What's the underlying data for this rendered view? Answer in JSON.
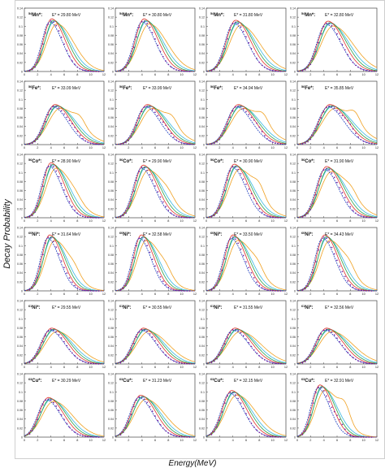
{
  "figure": {
    "ylabel": "Decay Probability",
    "xlabel": "Energy(MeV)"
  },
  "style": {
    "series_colors": {
      "experiment": "#7a1fa2",
      "model_1": "#1f3fbf",
      "model_2": "#e0352b",
      "model_3": "#2aa14a",
      "model_4": "#f0a020",
      "model_5": "#35b8e0"
    }
  },
  "chart_data": [
    {
      "type": "line",
      "nucleus_mass": "54",
      "nucleus_element": "Mn*:",
      "energy_label": "E* = 29.80 MeV",
      "xlim": [
        0,
        12
      ],
      "ylim": [
        0,
        0.14
      ],
      "xticks": [
        "0",
        "2",
        "4",
        "6",
        "8",
        "10",
        "12"
      ],
      "yticks": [
        "0",
        "0.02",
        "0.04",
        "0.06",
        "0.08",
        "0.1",
        "0.12",
        "0.14"
      ],
      "peak_x": 4.3,
      "peak_y": 0.113,
      "width": 1.7,
      "tail": 0.0
    },
    {
      "type": "line",
      "nucleus_mass": "54",
      "nucleus_element": "Mn*:",
      "energy_label": "E* = 30.80 MeV",
      "xlim": [
        0,
        12
      ],
      "ylim": [
        0,
        0.14
      ],
      "xticks": [
        "0",
        "2",
        "4",
        "6",
        "8",
        "10",
        "12"
      ],
      "yticks": [
        "0",
        "0.02",
        "0.04",
        "0.06",
        "0.08",
        "0.1",
        "0.12",
        "0.14"
      ],
      "peak_x": 4.5,
      "peak_y": 0.113,
      "width": 1.8,
      "tail": 0.0
    },
    {
      "type": "line",
      "nucleus_mass": "54",
      "nucleus_element": "Mn*:",
      "energy_label": "E* = 31.80 MeV",
      "xlim": [
        0,
        12
      ],
      "ylim": [
        0,
        0.14
      ],
      "xticks": [
        "0",
        "2",
        "4",
        "6",
        "8",
        "10",
        "12"
      ],
      "yticks": [
        "0",
        "0.02",
        "0.04",
        "0.06",
        "0.08",
        "0.1",
        "0.12",
        "0.14"
      ],
      "peak_x": 4.6,
      "peak_y": 0.11,
      "width": 1.9,
      "tail": 0.0
    },
    {
      "type": "line",
      "nucleus_mass": "54",
      "nucleus_element": "Mn*:",
      "energy_label": "E* = 32.80 MeV",
      "xlim": [
        0,
        12
      ],
      "ylim": [
        0,
        0.14
      ],
      "xticks": [
        "0",
        "2",
        "4",
        "6",
        "8",
        "10",
        "12"
      ],
      "yticks": [
        "0",
        "0.02",
        "0.04",
        "0.06",
        "0.08",
        "0.1",
        "0.12",
        "0.14"
      ],
      "peak_x": 4.8,
      "peak_y": 0.108,
      "width": 2.0,
      "tail": 0.0
    },
    {
      "type": "line",
      "nucleus_mass": "56",
      "nucleus_element": "Fe*:",
      "energy_label": "E* = 33.09 MeV",
      "xlim": [
        0,
        12
      ],
      "ylim": [
        0,
        0.14
      ],
      "xticks": [
        "0",
        "2",
        "4",
        "6",
        "8",
        "10",
        "12"
      ],
      "yticks": [
        "0",
        "0.02",
        "0.04",
        "0.06",
        "0.08",
        "0.1",
        "0.12",
        "0.14"
      ],
      "peak_x": 4.8,
      "peak_y": 0.086,
      "width": 2.0,
      "tail": 0.015
    },
    {
      "type": "line",
      "nucleus_mass": "56",
      "nucleus_element": "Fe*:",
      "energy_label": "E* = 33.99 MeV",
      "xlim": [
        0,
        12
      ],
      "ylim": [
        0,
        0.14
      ],
      "xticks": [
        "0",
        "2",
        "4",
        "6",
        "8",
        "10",
        "12"
      ],
      "yticks": [
        "0",
        "0.02",
        "0.04",
        "0.06",
        "0.08",
        "0.1",
        "0.12",
        "0.14"
      ],
      "peak_x": 5.0,
      "peak_y": 0.086,
      "width": 2.0,
      "tail": 0.015
    },
    {
      "type": "line",
      "nucleus_mass": "56",
      "nucleus_element": "Fe*:",
      "energy_label": "E* = 34.94 MeV",
      "xlim": [
        0,
        12
      ],
      "ylim": [
        0,
        0.14
      ],
      "xticks": [
        "0",
        "2",
        "4",
        "6",
        "8",
        "10",
        "12"
      ],
      "yticks": [
        "0",
        "0.02",
        "0.04",
        "0.06",
        "0.08",
        "0.1",
        "0.12",
        "0.14"
      ],
      "peak_x": 5.0,
      "peak_y": 0.086,
      "width": 2.1,
      "tail": 0.018
    },
    {
      "type": "line",
      "nucleus_mass": "56",
      "nucleus_element": "Fe*:",
      "energy_label": "E* = 35.85 MeV",
      "xlim": [
        0,
        12
      ],
      "ylim": [
        0,
        0.14
      ],
      "xticks": [
        "0",
        "2",
        "4",
        "6",
        "8",
        "10",
        "12"
      ],
      "yticks": [
        "0",
        "0.02",
        "0.04",
        "0.06",
        "0.08",
        "0.1",
        "0.12",
        "0.14"
      ],
      "peak_x": 5.1,
      "peak_y": 0.086,
      "width": 2.2,
      "tail": 0.02
    },
    {
      "type": "line",
      "nucleus_mass": "56",
      "nucleus_element": "Co*:",
      "energy_label": "E* = 28.90 MeV",
      "xlim": [
        0,
        12
      ],
      "ylim": [
        0,
        0.14
      ],
      "xticks": [
        "0",
        "2",
        "4",
        "6",
        "8",
        "10",
        "12"
      ],
      "yticks": [
        "0",
        "0.02",
        "0.04",
        "0.06",
        "0.08",
        "0.1",
        "0.12",
        "0.14"
      ],
      "peak_x": 4.2,
      "peak_y": 0.118,
      "width": 1.7,
      "tail": 0.005
    },
    {
      "type": "line",
      "nucleus_mass": "56",
      "nucleus_element": "Co*:",
      "energy_label": "E* = 29.90 MeV",
      "xlim": [
        0,
        12
      ],
      "ylim": [
        0,
        0.14
      ],
      "xticks": [
        "0",
        "2",
        "4",
        "6",
        "8",
        "10",
        "12"
      ],
      "yticks": [
        "0",
        "0.02",
        "0.04",
        "0.06",
        "0.08",
        "0.1",
        "0.12",
        "0.14"
      ],
      "peak_x": 4.4,
      "peak_y": 0.113,
      "width": 1.8,
      "tail": 0.008
    },
    {
      "type": "line",
      "nucleus_mass": "56",
      "nucleus_element": "Co*:",
      "energy_label": "E* = 30.90 MeV",
      "xlim": [
        0,
        12
      ],
      "ylim": [
        0,
        0.14
      ],
      "xticks": [
        "0",
        "2",
        "4",
        "6",
        "8",
        "10",
        "12"
      ],
      "yticks": [
        "0",
        "0.02",
        "0.04",
        "0.06",
        "0.08",
        "0.1",
        "0.12",
        "0.14"
      ],
      "peak_x": 4.4,
      "peak_y": 0.115,
      "width": 1.8,
      "tail": 0.02
    },
    {
      "type": "line",
      "nucleus_mass": "56",
      "nucleus_element": "Co*:",
      "energy_label": "E* = 31.90 MeV",
      "xlim": [
        0,
        12
      ],
      "ylim": [
        0,
        0.14
      ],
      "xticks": [
        "0",
        "2",
        "4",
        "6",
        "8",
        "10",
        "12"
      ],
      "yticks": [
        "0",
        "0.02",
        "0.04",
        "0.06",
        "0.08",
        "0.1",
        "0.12",
        "0.14"
      ],
      "peak_x": 4.6,
      "peak_y": 0.11,
      "width": 1.9,
      "tail": 0.01
    },
    {
      "type": "line",
      "nucleus_mass": "60",
      "nucleus_element": "Ni*:",
      "energy_label": "E* = 31.64 MeV",
      "xlim": [
        0,
        12
      ],
      "ylim": [
        0,
        0.14
      ],
      "xticks": [
        "0",
        "2",
        "4",
        "6",
        "8",
        "10",
        "12"
      ],
      "yticks": [
        "0",
        "0.02",
        "0.04",
        "0.06",
        "0.08",
        "0.1",
        "0.12",
        "0.14"
      ],
      "peak_x": 4.0,
      "peak_y": 0.12,
      "width": 1.6,
      "tail": 0.01
    },
    {
      "type": "line",
      "nucleus_mass": "60",
      "nucleus_element": "Ni*:",
      "energy_label": "E* = 32.58 MeV",
      "xlim": [
        0,
        12
      ],
      "ylim": [
        0,
        0.14
      ],
      "xticks": [
        "0",
        "2",
        "4",
        "6",
        "8",
        "10",
        "12"
      ],
      "yticks": [
        "0",
        "0.02",
        "0.04",
        "0.06",
        "0.08",
        "0.1",
        "0.12",
        "0.14"
      ],
      "peak_x": 4.1,
      "peak_y": 0.12,
      "width": 1.6,
      "tail": 0.01
    },
    {
      "type": "line",
      "nucleus_mass": "60",
      "nucleus_element": "Ni*:",
      "energy_label": "E* = 33.50 MeV",
      "xlim": [
        0,
        12
      ],
      "ylim": [
        0,
        0.14
      ],
      "xticks": [
        "0",
        "2",
        "4",
        "6",
        "8",
        "10",
        "12"
      ],
      "yticks": [
        "0",
        "0.02",
        "0.04",
        "0.06",
        "0.08",
        "0.1",
        "0.12",
        "0.14"
      ],
      "peak_x": 4.2,
      "peak_y": 0.12,
      "width": 1.7,
      "tail": 0.012
    },
    {
      "type": "line",
      "nucleus_mass": "60",
      "nucleus_element": "Ni*:",
      "energy_label": "E* = 34.43 MeV",
      "xlim": [
        0,
        12
      ],
      "ylim": [
        0,
        0.14
      ],
      "xticks": [
        "0",
        "2",
        "4",
        "6",
        "8",
        "10",
        "12"
      ],
      "yticks": [
        "0",
        "0.02",
        "0.04",
        "0.06",
        "0.08",
        "0.1",
        "0.12",
        "0.14"
      ],
      "peak_x": 4.3,
      "peak_y": 0.12,
      "width": 1.7,
      "tail": 0.012
    },
    {
      "type": "line",
      "nucleus_mass": "61",
      "nucleus_element": "Ni*:",
      "energy_label": "E* = 29.55 MeV",
      "xlim": [
        0,
        12
      ],
      "ylim": [
        0,
        0.14
      ],
      "xticks": [
        "0",
        "2",
        "4",
        "6",
        "8",
        "10",
        "12"
      ],
      "yticks": [
        "0",
        "0.02",
        "0.04",
        "0.06",
        "0.08",
        "0.1",
        "0.12",
        "0.14"
      ],
      "peak_x": 4.3,
      "peak_y": 0.077,
      "width": 2.0,
      "tail": 0.0
    },
    {
      "type": "line",
      "nucleus_mass": "61",
      "nucleus_element": "Ni*:",
      "energy_label": "E* = 30.55 MeV",
      "xlim": [
        0,
        12
      ],
      "ylim": [
        0,
        0.14
      ],
      "xticks": [
        "0",
        "2",
        "4",
        "6",
        "8",
        "10",
        "12"
      ],
      "yticks": [
        "0",
        "0.02",
        "0.04",
        "0.06",
        "0.08",
        "0.1",
        "0.12",
        "0.14"
      ],
      "peak_x": 4.4,
      "peak_y": 0.077,
      "width": 2.0,
      "tail": 0.0
    },
    {
      "type": "line",
      "nucleus_mass": "61",
      "nucleus_element": "Ni*:",
      "energy_label": "E* = 31.55 MeV",
      "xlim": [
        0,
        12
      ],
      "ylim": [
        0,
        0.14
      ],
      "xticks": [
        "0",
        "2",
        "4",
        "6",
        "8",
        "10",
        "12"
      ],
      "yticks": [
        "0",
        "0.02",
        "0.04",
        "0.06",
        "0.08",
        "0.1",
        "0.12",
        "0.14"
      ],
      "peak_x": 4.5,
      "peak_y": 0.077,
      "width": 2.1,
      "tail": 0.0
    },
    {
      "type": "line",
      "nucleus_mass": "61",
      "nucleus_element": "Ni*:",
      "energy_label": "E* = 32.56 MeV",
      "xlim": [
        0,
        12
      ],
      "ylim": [
        0,
        0.14
      ],
      "xticks": [
        "0",
        "2",
        "4",
        "6",
        "8",
        "10",
        "12"
      ],
      "yticks": [
        "0",
        "0.02",
        "0.04",
        "0.06",
        "0.08",
        "0.1",
        "0.12",
        "0.14"
      ],
      "peak_x": 4.6,
      "peak_y": 0.077,
      "width": 2.1,
      "tail": 0.0
    },
    {
      "type": "line",
      "nucleus_mass": "63",
      "nucleus_element": "Cu*:",
      "energy_label": "E* = 30.29 MeV",
      "xlim": [
        0,
        12
      ],
      "ylim": [
        0,
        0.14
      ],
      "xticks": [
        "0",
        "2",
        "4",
        "6",
        "8",
        "10",
        "12"
      ],
      "yticks": [
        "0",
        "0.02",
        "0.04",
        "0.06",
        "0.08",
        "0.1",
        "0.12",
        "0.14"
      ],
      "peak_x": 3.8,
      "peak_y": 0.085,
      "width": 1.9,
      "tail": 0.0
    },
    {
      "type": "line",
      "nucleus_mass": "63",
      "nucleus_element": "Cu*:",
      "energy_label": "E* = 31.23 MeV",
      "xlim": [
        0,
        12
      ],
      "ylim": [
        0,
        0.14
      ],
      "xticks": [
        "0",
        "2",
        "4",
        "6",
        "8",
        "10",
        "12"
      ],
      "yticks": [
        "0",
        "0.02",
        "0.04",
        "0.06",
        "0.08",
        "0.1",
        "0.12",
        "0.14"
      ],
      "peak_x": 4.0,
      "peak_y": 0.09,
      "width": 1.9,
      "tail": 0.0
    },
    {
      "type": "line",
      "nucleus_mass": "63",
      "nucleus_element": "Cu*:",
      "energy_label": "E* = 32.15 MeV",
      "xlim": [
        0,
        12
      ],
      "ylim": [
        0,
        0.14
      ],
      "xticks": [
        "0",
        "2",
        "4",
        "6",
        "8",
        "10",
        "12"
      ],
      "yticks": [
        "0",
        "0.02",
        "0.04",
        "0.06",
        "0.08",
        "0.1",
        "0.12",
        "0.14"
      ],
      "peak_x": 4.0,
      "peak_y": 0.1,
      "width": 1.9,
      "tail": 0.0
    },
    {
      "type": "line",
      "nucleus_mass": "63",
      "nucleus_element": "Cu*:",
      "energy_label": "E* = 32.91 MeV",
      "xlim": [
        0,
        12
      ],
      "ylim": [
        0,
        0.14
      ],
      "xticks": [
        "0",
        "2",
        "4",
        "6",
        "8",
        "10",
        "12"
      ],
      "yticks": [
        "0",
        "0.02",
        "0.04",
        "0.06",
        "0.08",
        "0.1",
        "0.12",
        "0.14"
      ],
      "peak_x": 3.6,
      "peak_y": 0.112,
      "width": 1.6,
      "tail": 0.03
    }
  ]
}
